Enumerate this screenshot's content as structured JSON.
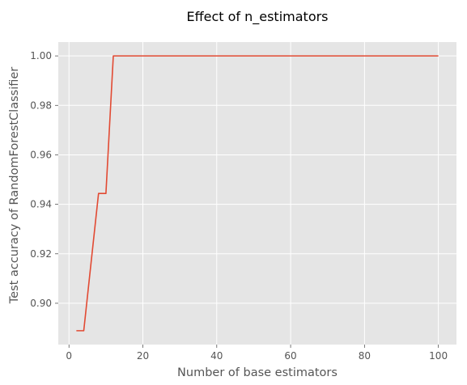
{
  "chart_data": {
    "type": "line",
    "title": "Effect of n_estimators",
    "xlabel": "Number of base estimators",
    "ylabel": "Test accuracy of RandomForestClassifier",
    "xlim": [
      -2.9,
      104.9
    ],
    "ylim": [
      0.8833,
      1.0056
    ],
    "xticks": [
      0,
      20,
      40,
      60,
      80,
      100
    ],
    "yticks": [
      0.9,
      0.92,
      0.94,
      0.96,
      0.98,
      1.0
    ],
    "xtick_labels": [
      "0",
      "20",
      "40",
      "60",
      "80",
      "100"
    ],
    "ytick_labels": [
      "0.90",
      "0.92",
      "0.94",
      "0.96",
      "0.98",
      "1.00"
    ],
    "grid": true,
    "legend": "none",
    "colors": {
      "plot_background": "#e5e5e5",
      "grid": "#ffffff",
      "line": "#e24a33",
      "text": "#555555",
      "title": "#000000"
    },
    "series": [
      {
        "x": [
          2,
          4,
          6,
          8,
          10,
          12,
          14,
          16,
          18,
          20,
          22,
          24,
          26,
          28,
          30,
          32,
          34,
          36,
          38,
          40,
          42,
          44,
          46,
          48,
          50,
          52,
          54,
          56,
          58,
          60,
          62,
          64,
          66,
          68,
          70,
          72,
          74,
          76,
          78,
          80,
          82,
          84,
          86,
          88,
          90,
          92,
          94,
          96,
          98,
          100
        ],
        "y": [
          0.8889,
          0.8889,
          0.9167,
          0.9444,
          0.9444,
          1.0,
          1.0,
          1.0,
          1.0,
          1.0,
          1.0,
          1.0,
          1.0,
          1.0,
          1.0,
          1.0,
          1.0,
          1.0,
          1.0,
          1.0,
          1.0,
          1.0,
          1.0,
          1.0,
          1.0,
          1.0,
          1.0,
          1.0,
          1.0,
          1.0,
          1.0,
          1.0,
          1.0,
          1.0,
          1.0,
          1.0,
          1.0,
          1.0,
          1.0,
          1.0,
          1.0,
          1.0,
          1.0,
          1.0,
          1.0,
          1.0,
          1.0,
          1.0,
          1.0,
          1.0
        ]
      }
    ]
  }
}
